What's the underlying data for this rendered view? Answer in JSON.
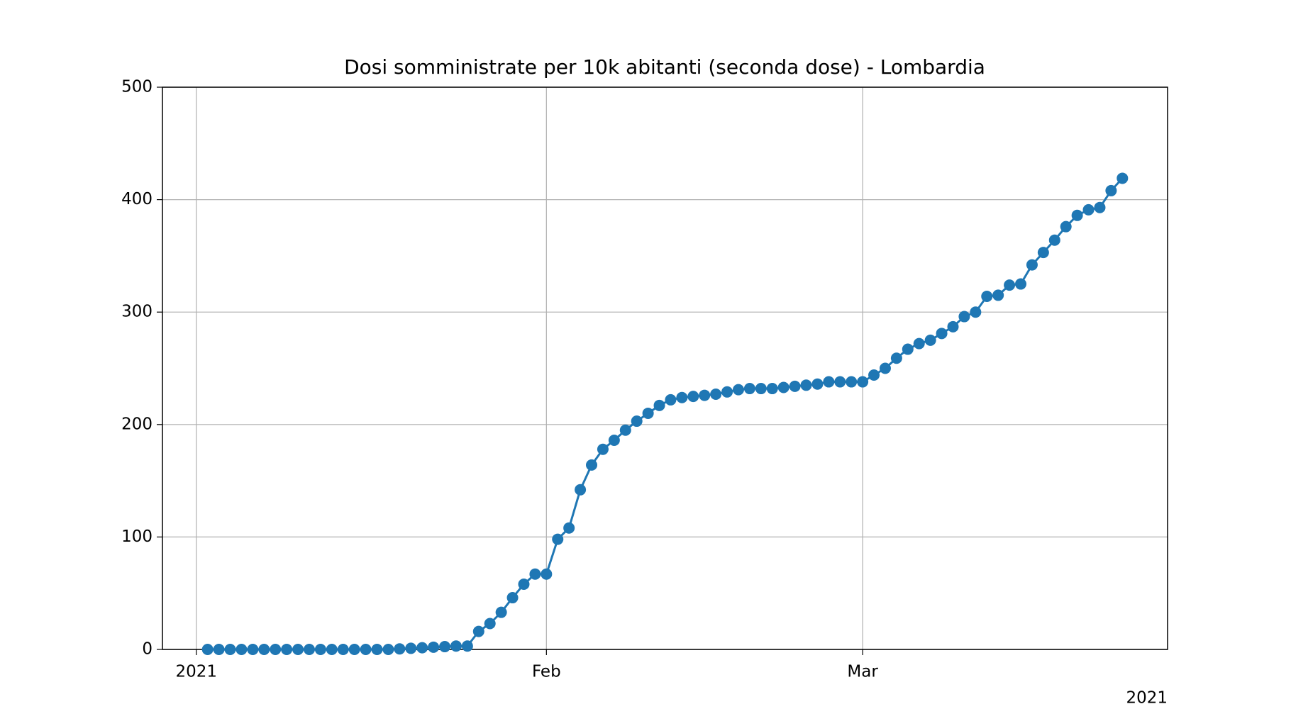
{
  "chart_data": {
    "type": "line",
    "title": "Dosi somministrate per 10k abitanti (seconda dose) - Lombardia",
    "x": [
      1,
      2,
      3,
      4,
      5,
      6,
      7,
      8,
      9,
      10,
      11,
      12,
      13,
      14,
      15,
      16,
      17,
      18,
      19,
      20,
      21,
      22,
      23,
      24,
      25,
      26,
      27,
      28,
      29,
      30,
      31,
      32,
      33,
      34,
      35,
      36,
      37,
      38,
      39,
      40,
      41,
      42,
      43,
      44,
      45,
      46,
      47,
      48,
      49,
      50,
      51,
      52,
      53,
      54,
      55,
      56,
      57,
      58,
      59,
      60,
      61,
      62,
      63,
      64,
      65,
      66,
      67,
      68,
      69,
      70,
      71,
      72,
      73,
      74,
      75,
      76,
      77,
      78,
      79,
      80,
      81,
      82
    ],
    "series": [
      {
        "color": "#1f77b4",
        "marker": "o",
        "values": [
          0,
          0,
          0,
          0,
          0,
          0,
          0,
          0,
          0,
          0,
          0,
          0,
          0,
          0,
          0,
          0,
          0,
          0.5,
          1,
          1.5,
          2,
          2.5,
          3,
          3,
          16,
          23,
          33,
          46,
          58,
          67,
          67,
          98,
          108,
          142,
          164,
          178,
          186,
          195,
          203,
          210,
          217,
          222,
          224,
          225,
          226,
          227,
          229,
          231,
          232,
          232,
          232,
          233,
          234,
          235,
          236,
          238,
          238,
          238,
          238,
          244,
          250,
          259,
          267,
          272,
          275,
          281,
          287,
          296,
          300,
          314,
          315,
          324,
          325,
          342,
          353,
          364,
          376,
          386,
          391,
          393,
          408,
          419
        ]
      }
    ],
    "xlim": [
      -3,
      86
    ],
    "xticks": [
      {
        "value": 0,
        "label": "2021"
      },
      {
        "value": 31,
        "label": "Feb"
      },
      {
        "value": 59,
        "label": "Mar"
      }
    ],
    "x_offset_label": "2021",
    "ylim": [
      0,
      500
    ],
    "yticks": [
      0,
      100,
      200,
      300,
      400,
      500
    ],
    "grid": true
  }
}
